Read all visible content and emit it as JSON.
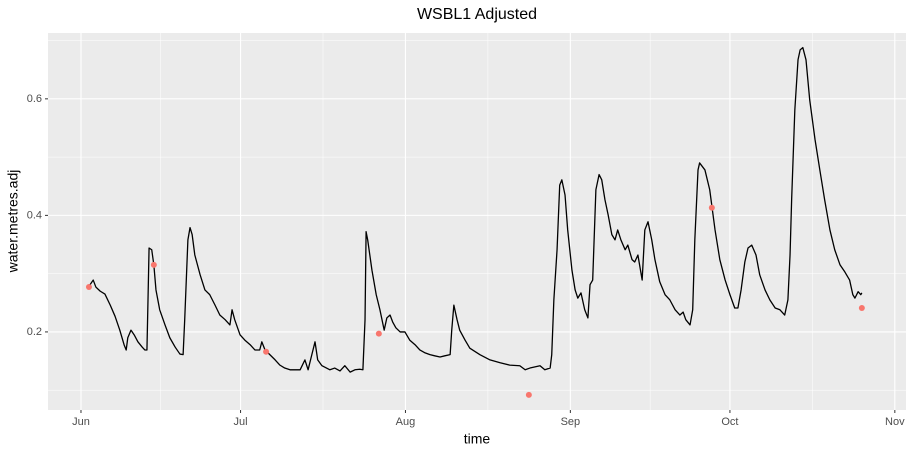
{
  "chart_data": {
    "type": "line",
    "title": "WSBL1 Adjusted",
    "x_label": "time",
    "y_label": "water.metres.adj",
    "xlim": [
      145.8,
      307.1
    ],
    "ylim": [
      0.066,
      0.713
    ],
    "xticks": [
      {
        "value": 152,
        "label": "Jun"
      },
      {
        "value": 182,
        "label": "Jul"
      },
      {
        "value": 213,
        "label": "Aug"
      },
      {
        "value": 244,
        "label": "Sep"
      },
      {
        "value": 274,
        "label": "Oct"
      },
      {
        "value": 305,
        "label": "Nov"
      }
    ],
    "yticks": [
      0.2,
      0.4,
      0.6
    ],
    "grid": true,
    "series": [
      {
        "mode": "line",
        "color": "#000000",
        "x": [
          153.7,
          154.3,
          154.8,
          155.6,
          156.5,
          157.5,
          158.4,
          159.3,
          160.1,
          160.5,
          160.8,
          161.4,
          162.0,
          162.7,
          163.5,
          164.0,
          164.4,
          164.6,
          164.8,
          165.3,
          165.7,
          166.1,
          166.8,
          167.8,
          168.7,
          169.7,
          170.6,
          171.2,
          171.5,
          172.1,
          172.5,
          172.9,
          173.4,
          174.4,
          175.3,
          176.2,
          177.2,
          178.1,
          179.1,
          180.0,
          180.4,
          180.9,
          181.9,
          182.8,
          183.8,
          184.7,
          185.6,
          186.0,
          186.6,
          187.5,
          188.5,
          189.4,
          190.3,
          191.3,
          193.2,
          194.1,
          194.7,
          195.4,
          196.0,
          196.5,
          197.3,
          198.8,
          199.7,
          200.7,
          201.6,
          202.6,
          203.5,
          204.4,
          205.0,
          205.4,
          205.6,
          205.9,
          206.7,
          207.5,
          208.2,
          209.0,
          209.5,
          210.1,
          210.6,
          211.2,
          212.0,
          212.9,
          213.8,
          214.8,
          215.7,
          216.7,
          217.6,
          218.5,
          219.5,
          220.4,
          221.4,
          221.7,
          222.1,
          222.7,
          223.2,
          224.2,
          225.1,
          227.0,
          228.9,
          230.8,
          232.6,
          234.5,
          235.5,
          236.4,
          238.3,
          239.2,
          240.2,
          240.5,
          240.9,
          241.5,
          242.0,
          242.4,
          243.0,
          243.5,
          244.3,
          244.9,
          245.4,
          246.0,
          246.7,
          247.3,
          247.7,
          248.2,
          248.8,
          249.4,
          249.9,
          250.5,
          251.1,
          251.8,
          252.4,
          252.9,
          253.5,
          254.3,
          254.8,
          255.6,
          256.1,
          256.7,
          257.5,
          258.0,
          258.6,
          259.3,
          259.9,
          260.8,
          261.8,
          262.7,
          263.7,
          264.6,
          265.2,
          265.7,
          266.5,
          267.0,
          267.4,
          268.0,
          268.3,
          269.3,
          270.2,
          271.2,
          272.1,
          273.1,
          274.0,
          274.9,
          275.5,
          276.1,
          276.8,
          277.4,
          278.1,
          278.9,
          279.6,
          280.6,
          281.5,
          282.5,
          283.4,
          284.3,
          284.9,
          285.3,
          285.6,
          286.2,
          286.8,
          287.2,
          287.7,
          288.3,
          289.0,
          290.0,
          290.9,
          291.8,
          292.8,
          293.7,
          294.7,
          295.6,
          296.5,
          297.1,
          297.5,
          298.1,
          298.6,
          298.8
        ],
        "values": [
          0.281,
          0.289,
          0.277,
          0.27,
          0.265,
          0.246,
          0.227,
          0.203,
          0.178,
          0.169,
          0.19,
          0.203,
          0.195,
          0.183,
          0.174,
          0.169,
          0.169,
          0.255,
          0.344,
          0.341,
          0.315,
          0.272,
          0.238,
          0.212,
          0.19,
          0.174,
          0.162,
          0.161,
          0.221,
          0.358,
          0.379,
          0.367,
          0.332,
          0.298,
          0.272,
          0.264,
          0.246,
          0.229,
          0.221,
          0.212,
          0.238,
          0.221,
          0.195,
          0.186,
          0.178,
          0.169,
          0.169,
          0.183,
          0.169,
          0.161,
          0.152,
          0.143,
          0.138,
          0.135,
          0.135,
          0.152,
          0.135,
          0.161,
          0.183,
          0.152,
          0.142,
          0.135,
          0.138,
          0.133,
          0.142,
          0.131,
          0.135,
          0.136,
          0.135,
          0.221,
          0.372,
          0.358,
          0.306,
          0.264,
          0.238,
          0.203,
          0.224,
          0.229,
          0.217,
          0.207,
          0.2,
          0.2,
          0.186,
          0.178,
          0.169,
          0.164,
          0.161,
          0.159,
          0.157,
          0.159,
          0.161,
          0.203,
          0.246,
          0.221,
          0.203,
          0.186,
          0.172,
          0.161,
          0.152,
          0.147,
          0.143,
          0.142,
          0.135,
          0.138,
          0.142,
          0.135,
          0.138,
          0.161,
          0.255,
          0.341,
          0.452,
          0.461,
          0.435,
          0.375,
          0.306,
          0.272,
          0.258,
          0.267,
          0.238,
          0.224,
          0.281,
          0.289,
          0.444,
          0.47,
          0.461,
          0.427,
          0.401,
          0.367,
          0.358,
          0.375,
          0.358,
          0.341,
          0.349,
          0.324,
          0.32,
          0.332,
          0.289,
          0.375,
          0.389,
          0.358,
          0.324,
          0.286,
          0.264,
          0.255,
          0.238,
          0.229,
          0.234,
          0.221,
          0.212,
          0.238,
          0.358,
          0.478,
          0.49,
          0.478,
          0.444,
          0.375,
          0.324,
          0.289,
          0.264,
          0.241,
          0.241,
          0.272,
          0.32,
          0.344,
          0.349,
          0.332,
          0.298,
          0.272,
          0.255,
          0.241,
          0.238,
          0.229,
          0.255,
          0.332,
          0.427,
          0.581,
          0.667,
          0.684,
          0.688,
          0.667,
          0.598,
          0.53,
          0.478,
          0.427,
          0.375,
          0.341,
          0.315,
          0.303,
          0.289,
          0.264,
          0.258,
          0.269,
          0.264,
          0.267
        ]
      },
      {
        "mode": "points",
        "color": "#f8766d",
        "x": [
          153.5,
          165.7,
          186.8,
          208.0,
          236.2,
          270.6,
          298.8
        ],
        "values": [
          0.277,
          0.315,
          0.166,
          0.197,
          0.092,
          0.413,
          0.241
        ]
      }
    ]
  }
}
